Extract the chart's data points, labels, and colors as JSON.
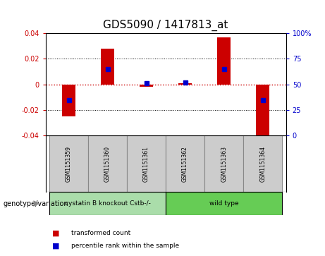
{
  "title": "GDS5090 / 1417813_at",
  "samples": [
    "GSM1151359",
    "GSM1151360",
    "GSM1151361",
    "GSM1151362",
    "GSM1151363",
    "GSM1151364"
  ],
  "transformed_counts": [
    -0.025,
    0.028,
    -0.0018,
    0.001,
    0.037,
    -0.043
  ],
  "percentile_ranks": [
    35,
    65,
    51,
    52,
    65,
    35
  ],
  "ylim_left": [
    -0.04,
    0.04
  ],
  "ylim_right": [
    0,
    100
  ],
  "yticks_left": [
    -0.04,
    -0.02,
    0.0,
    0.02,
    0.04
  ],
  "yticks_right": [
    0,
    25,
    50,
    75,
    100
  ],
  "bar_color": "#cc0000",
  "dot_color": "#0000cc",
  "zero_line_color": "#cc0000",
  "groups": [
    {
      "label": "cystatin B knockout Cstb-/-",
      "indices": [
        0,
        1,
        2
      ],
      "color": "#aaddaa"
    },
    {
      "label": "wild type",
      "indices": [
        3,
        4,
        5
      ],
      "color": "#66cc55"
    }
  ],
  "group_label": "genotype/variation",
  "legend_items": [
    {
      "label": "transformed count",
      "color": "#cc0000"
    },
    {
      "label": "percentile rank within the sample",
      "color": "#0000cc"
    }
  ],
  "bar_width": 0.35,
  "title_fontsize": 11,
  "tick_fontsize": 7,
  "sample_box_color": "#cccccc",
  "sample_box_edge_color": "#888888"
}
